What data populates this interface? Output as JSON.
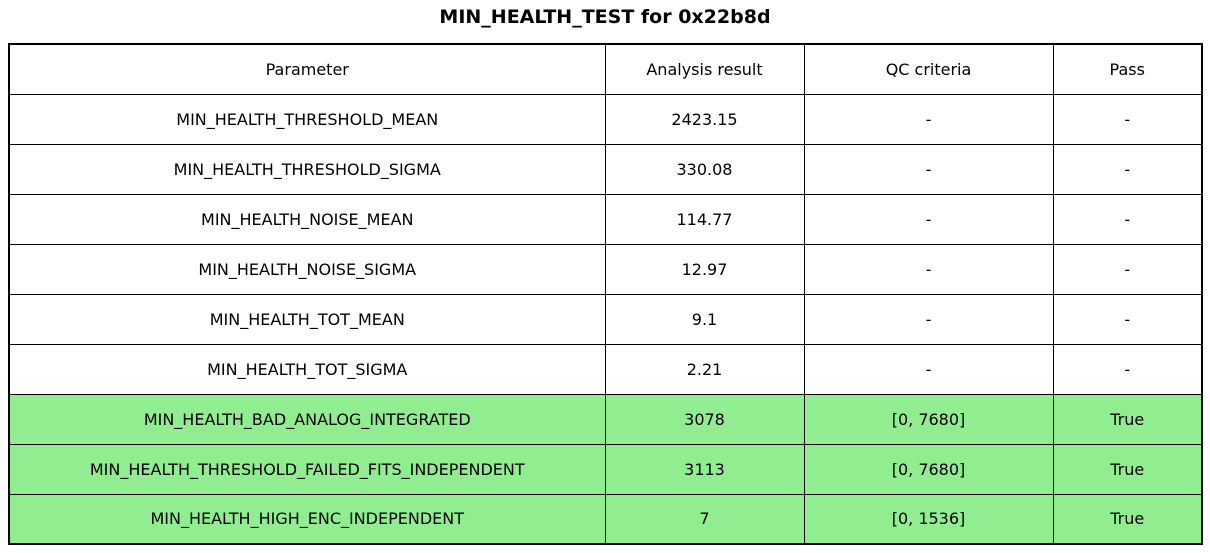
{
  "title": "MIN_HEALTH_TEST for 0x22b8d",
  "colors": {
    "pass_row_background": "#90ee90",
    "border": "#000000",
    "background": "#ffffff"
  },
  "chart_data": {
    "type": "table",
    "title": "MIN_HEALTH_TEST for 0x22b8d",
    "columns": [
      "Parameter",
      "Analysis result",
      "QC criteria",
      "Pass"
    ],
    "rows": [
      {
        "cells": [
          "MIN_HEALTH_THRESHOLD_MEAN",
          "2423.15",
          "-",
          "-"
        ],
        "highlighted": false
      },
      {
        "cells": [
          "MIN_HEALTH_THRESHOLD_SIGMA",
          "330.08",
          "-",
          "-"
        ],
        "highlighted": false
      },
      {
        "cells": [
          "MIN_HEALTH_NOISE_MEAN",
          "114.77",
          "-",
          "-"
        ],
        "highlighted": false
      },
      {
        "cells": [
          "MIN_HEALTH_NOISE_SIGMA",
          "12.97",
          "-",
          "-"
        ],
        "highlighted": false
      },
      {
        "cells": [
          "MIN_HEALTH_TOT_MEAN",
          "9.1",
          "-",
          "-"
        ],
        "highlighted": false
      },
      {
        "cells": [
          "MIN_HEALTH_TOT_SIGMA",
          "2.21",
          "-",
          "-"
        ],
        "highlighted": false
      },
      {
        "cells": [
          "MIN_HEALTH_BAD_ANALOG_INTEGRATED",
          "3078",
          "[0, 7680]",
          "True"
        ],
        "highlighted": true
      },
      {
        "cells": [
          "MIN_HEALTH_THRESHOLD_FAILED_FITS_INDEPENDENT",
          "3113",
          "[0, 7680]",
          "True"
        ],
        "highlighted": true
      },
      {
        "cells": [
          "MIN_HEALTH_HIGH_ENC_INDEPENDENT",
          "7",
          "[0, 1536]",
          "True"
        ],
        "highlighted": true
      }
    ],
    "layout": {
      "legend": "none",
      "grid": "full-cell-borders",
      "highlight_meaning": "rows with QC criteria evaluated and passing"
    }
  }
}
